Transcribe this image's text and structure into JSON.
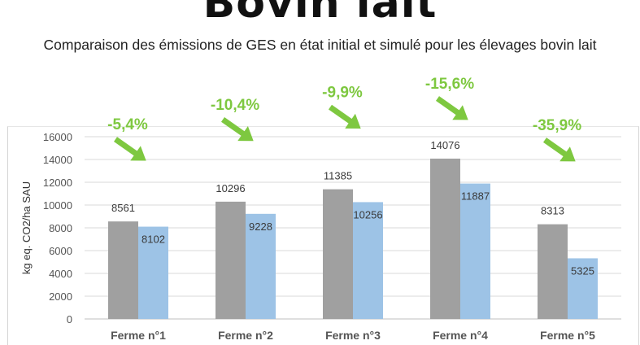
{
  "header": {
    "title": "Bovin lait",
    "subtitle": "Comparaison des émissions de GES en état initial et simulé pour les élevages bovin lait"
  },
  "colors": {
    "initial": "#a0a0a0",
    "simule": "#9dc3e6",
    "change": "#7ec840",
    "grid": "#d9d9d9"
  },
  "chart_data": {
    "type": "bar",
    "title": "Comparaison des émissions de GES en état initial et simulé pour les élevages bovin lait",
    "ylabel": "kg eq. CO2/ha SAU",
    "xlabel": "",
    "categories": [
      "Ferme n°1",
      "Ferme n°2",
      "Ferme n°3",
      "Ferme n°4",
      "Ferme n°5"
    ],
    "series": [
      {
        "values": [
          8561,
          10296,
          11385,
          14076,
          8313
        ]
      },
      {
        "values": [
          8102,
          9228,
          10256,
          11887,
          5325
        ]
      }
    ],
    "changes": [
      "-5,4%",
      "-10,4%",
      "-9,9%",
      "-15,6%",
      "-35,9%"
    ],
    "ylim": [
      0,
      16000
    ],
    "yticks": [
      0,
      2000,
      4000,
      6000,
      8000,
      10000,
      12000,
      14000,
      16000
    ],
    "grid": true,
    "legend": "none"
  }
}
